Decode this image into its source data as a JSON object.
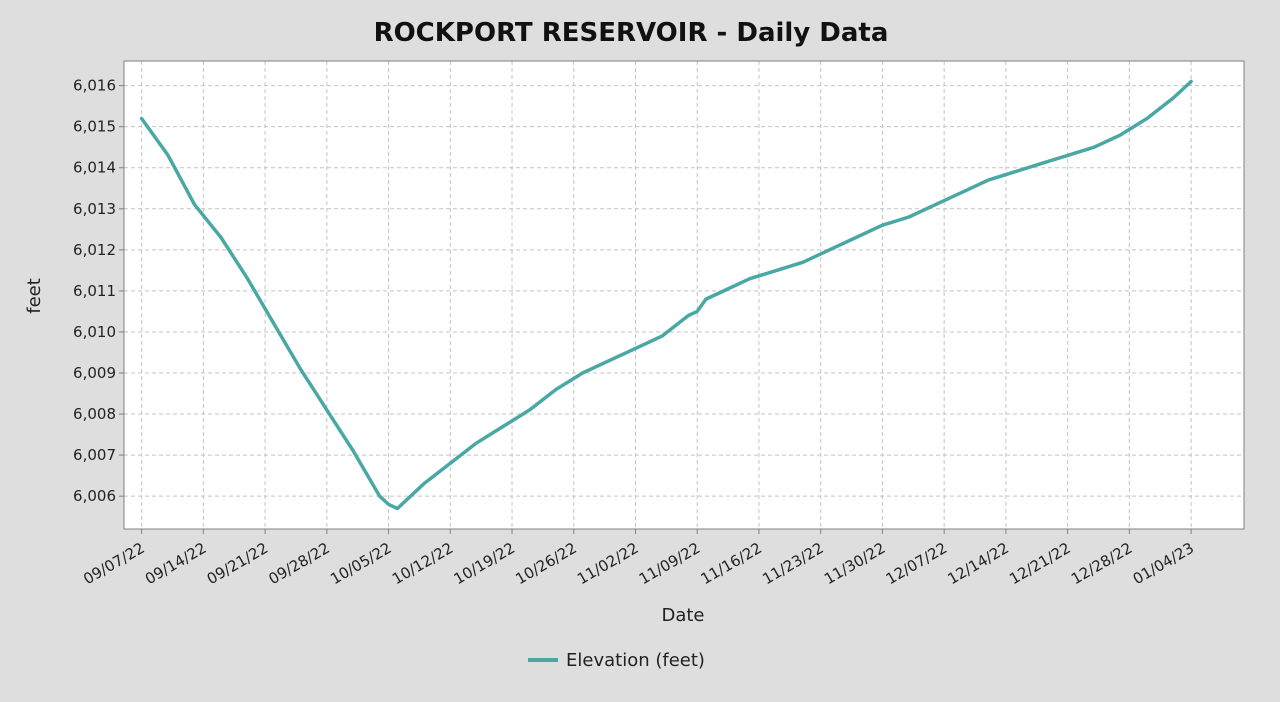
{
  "chart_data": {
    "type": "line",
    "title": "ROCKPORT RESERVOIR - Daily Data",
    "xlabel": "Date",
    "ylabel": "feet",
    "x_tick_labels": [
      "09/07/22",
      "09/14/22",
      "09/21/22",
      "09/28/22",
      "10/05/22",
      "10/12/22",
      "10/19/22",
      "10/26/22",
      "11/02/22",
      "11/09/22",
      "11/16/22",
      "11/23/22",
      "11/30/22",
      "12/07/22",
      "12/14/22",
      "12/21/22",
      "12/28/22",
      "01/04/23"
    ],
    "y_ticks": [
      6006,
      6007,
      6008,
      6009,
      6010,
      6011,
      6012,
      6013,
      6014,
      6015,
      6016
    ],
    "y_tick_labels": [
      "6,006",
      "6,007",
      "6,008",
      "6,009",
      "6,010",
      "6,011",
      "6,012",
      "6,013",
      "6,014",
      "6,015",
      "6,016"
    ],
    "ylim": [
      6005.2,
      6016.6
    ],
    "xlim": [
      "09/05/22",
      "01/10/23"
    ],
    "grid": true,
    "legend_position": "bottom",
    "colors": {
      "series": "#4aa8a4",
      "background": "#dedede",
      "plot_background": "#ffffff",
      "grid": "#c4c4c4",
      "frame": "#808080"
    },
    "series": [
      {
        "name": "Elevation (feet)",
        "x": [
          "09/07/22",
          "09/10/22",
          "09/13/22",
          "09/16/22",
          "09/19/22",
          "09/22/22",
          "09/25/22",
          "09/28/22",
          "10/01/22",
          "10/04/22",
          "10/05/22",
          "10/06/22",
          "10/09/22",
          "10/12/22",
          "10/15/22",
          "10/18/22",
          "10/21/22",
          "10/24/22",
          "10/27/22",
          "10/30/22",
          "11/02/22",
          "11/05/22",
          "11/08/22",
          "11/09/22",
          "11/10/22",
          "11/12/22",
          "11/15/22",
          "11/18/22",
          "11/21/22",
          "11/24/22",
          "11/27/22",
          "11/30/22",
          "12/03/22",
          "12/06/22",
          "12/09/22",
          "12/12/22",
          "12/15/22",
          "12/18/22",
          "12/21/22",
          "12/24/22",
          "12/27/22",
          "12/30/22",
          "01/02/23",
          "01/04/23"
        ],
        "y": [
          6015.2,
          6014.3,
          6013.1,
          6012.3,
          6011.3,
          6010.2,
          6009.1,
          6008.1,
          6007.1,
          6006.0,
          6005.8,
          6005.7,
          6006.3,
          6006.8,
          6007.3,
          6007.7,
          6008.1,
          6008.6,
          6009.0,
          6009.3,
          6009.6,
          6009.9,
          6010.4,
          6010.5,
          6010.8,
          6011.0,
          6011.3,
          6011.5,
          6011.7,
          6012.0,
          6012.3,
          6012.6,
          6012.8,
          6013.1,
          6013.4,
          6013.7,
          6013.9,
          6014.1,
          6014.3,
          6014.5,
          6014.8,
          6015.2,
          6015.7,
          6016.1
        ]
      }
    ]
  }
}
